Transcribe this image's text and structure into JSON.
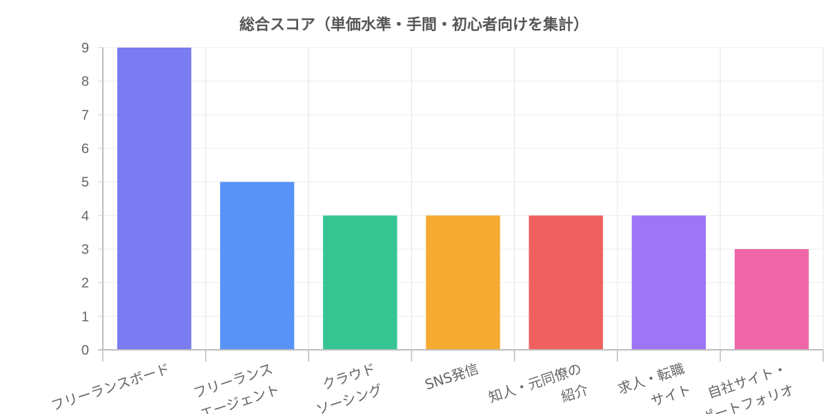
{
  "chart_data": {
    "type": "bar",
    "title": "総合スコア（単価水準・手間・初心者向けを集計）",
    "xlabel": "",
    "ylabel": "",
    "ylim": [
      0,
      9
    ],
    "yticks": [
      0,
      1,
      2,
      3,
      4,
      5,
      6,
      7,
      8,
      9
    ],
    "grid": true,
    "legend": "none",
    "categories": [
      [
        "フリーランスボード"
      ],
      [
        "フリーランス",
        "エージェント"
      ],
      [
        "クラウド",
        "ソーシング"
      ],
      [
        "SNS発信"
      ],
      [
        "知人・元同僚の",
        "紹介"
      ],
      [
        "求人・転職",
        "サイト"
      ],
      [
        "自社サイト・",
        "ポートフォリオ"
      ]
    ],
    "values": [
      9,
      5,
      4,
      4,
      4,
      4,
      3
    ],
    "colors": [
      "#7b7bf2",
      "#5893f8",
      "#36c493",
      "#f5aa31",
      "#f06060",
      "#9d76f6",
      "#ef66a8"
    ]
  }
}
